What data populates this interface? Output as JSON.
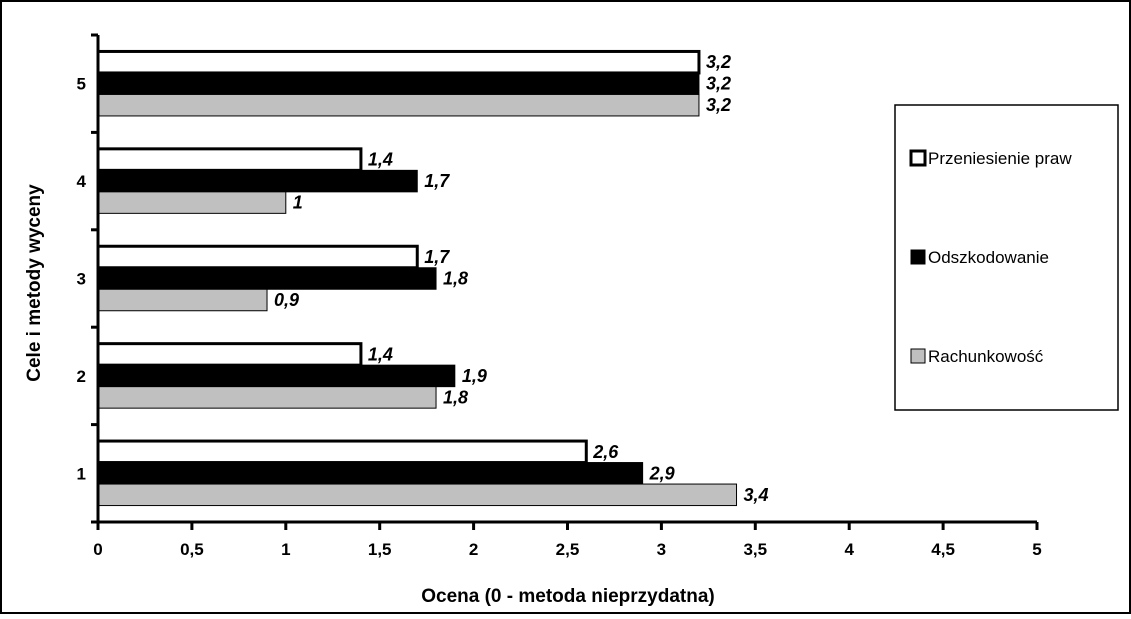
{
  "chart_data": {
    "type": "bar",
    "orientation": "horizontal",
    "categories": [
      "1",
      "2",
      "3",
      "4",
      "5"
    ],
    "series": [
      {
        "name": "Przeniesienie praw",
        "values": [
          2.6,
          1.4,
          1.7,
          1.4,
          3.2
        ],
        "labels": [
          "2,6",
          "1,4",
          "1,7",
          "1,4",
          "3,2"
        ],
        "color": "#ffffff"
      },
      {
        "name": "Odszkodowanie",
        "values": [
          2.9,
          1.9,
          1.8,
          1.7,
          3.2
        ],
        "labels": [
          "2,9",
          "1,9",
          "1,8",
          "1,7",
          "3,2"
        ],
        "color": "#000000"
      },
      {
        "name": "Rachunkowość",
        "values": [
          3.4,
          1.8,
          0.9,
          1.0,
          3.2
        ],
        "labels": [
          "3,4",
          "1,8",
          "0,9",
          "1",
          "3,2"
        ],
        "color": "#c0c0c0"
      }
    ],
    "xlabel": "Ocena  (0 - metoda nieprzydatna)",
    "ylabel": "Cele i metody wyceny",
    "xlim": [
      0,
      5
    ],
    "xticks": [
      0,
      0.5,
      1,
      1.5,
      2,
      2.5,
      3,
      3.5,
      4,
      4.5,
      5
    ],
    "xtick_labels": [
      "0",
      "0,5",
      "1",
      "1,5",
      "2",
      "2,5",
      "3",
      "3,5",
      "4",
      "4,5",
      "5"
    ],
    "grid": false,
    "legend_position": "right"
  }
}
